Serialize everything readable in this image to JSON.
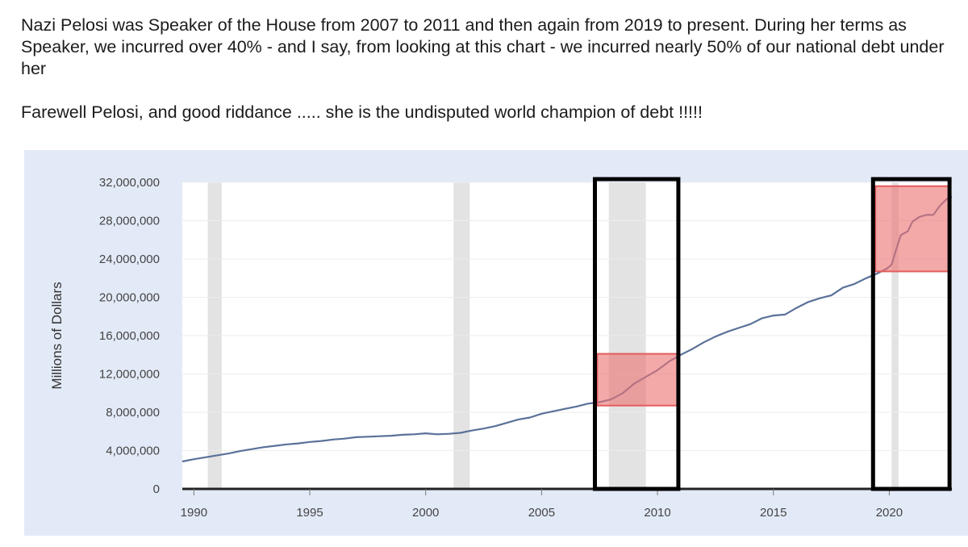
{
  "post": {
    "paragraph1": "Nazi Pelosi was Speaker of the House from 2007 to 2011 and then again from 2019 to present.  During her terms as Speaker, we incurred over 40% - and I say, from looking at this chart - we incurred nearly 50% of our national debt under her",
    "paragraph2": "Farewell Pelosi, and good riddance ..... she is the undisputed world champion of debt !!!!!"
  },
  "chart_data": {
    "type": "line",
    "title": "",
    "xlabel": "",
    "ylabel": "Millions of Dollars",
    "xlim": [
      1989.5,
      2022.7
    ],
    "ylim": [
      0,
      32000000
    ],
    "yticks": [
      0,
      4000000,
      8000000,
      12000000,
      16000000,
      20000000,
      24000000,
      28000000,
      32000000
    ],
    "ytick_labels": [
      "0",
      "4,000,000",
      "8,000,000",
      "12,000,000",
      "16,000,000",
      "20,000,000",
      "24,000,000",
      "28,000,000",
      "32,000,000"
    ],
    "xticks": [
      1990,
      1995,
      2000,
      2005,
      2010,
      2015,
      2020
    ],
    "xtick_labels": [
      "1990",
      "1995",
      "2000",
      "2005",
      "2010",
      "2015",
      "2020"
    ],
    "grid": "horizontal",
    "recession_bands": [
      [
        1990.6,
        1991.2
      ],
      [
        2001.2,
        2001.9
      ],
      [
        2007.9,
        2009.5
      ],
      [
        2020.1,
        2020.4
      ]
    ],
    "series": [
      {
        "color": "#5a7199",
        "x": [
          1989.5,
          1990.0,
          1990.5,
          1991.0,
          1991.5,
          1992.0,
          1992.5,
          1993.0,
          1993.5,
          1994.0,
          1994.5,
          1995.0,
          1995.5,
          1996.0,
          1996.5,
          1997.0,
          1997.5,
          1998.0,
          1998.5,
          1999.0,
          1999.5,
          2000.0,
          2000.5,
          2001.0,
          2001.5,
          2002.0,
          2002.5,
          2003.0,
          2003.5,
          2004.0,
          2004.5,
          2005.0,
          2005.5,
          2006.0,
          2006.5,
          2007.0,
          2007.5,
          2008.0,
          2008.5,
          2009.0,
          2009.5,
          2010.0,
          2010.5,
          2011.0,
          2011.5,
          2012.0,
          2012.5,
          2013.0,
          2013.5,
          2014.0,
          2014.5,
          2015.0,
          2015.5,
          2016.0,
          2016.5,
          2017.0,
          2017.5,
          2018.0,
          2018.5,
          2019.0,
          2019.5,
          2019.9,
          2020.1,
          2020.3,
          2020.5,
          2020.8,
          2021.0,
          2021.3,
          2021.6,
          2021.9,
          2022.2,
          2022.5,
          2022.7
        ],
        "values": [
          2860000,
          3100000,
          3300000,
          3500000,
          3700000,
          3950000,
          4150000,
          4350000,
          4500000,
          4650000,
          4750000,
          4900000,
          5000000,
          5150000,
          5250000,
          5400000,
          5450000,
          5500000,
          5550000,
          5650000,
          5700000,
          5800000,
          5700000,
          5750000,
          5850000,
          6100000,
          6300000,
          6550000,
          6900000,
          7250000,
          7450000,
          7850000,
          8100000,
          8350000,
          8600000,
          8900000,
          9050000,
          9350000,
          10000000,
          11000000,
          11700000,
          12400000,
          13300000,
          14000000,
          14600000,
          15300000,
          15900000,
          16400000,
          16800000,
          17200000,
          17800000,
          18100000,
          18200000,
          18900000,
          19500000,
          19900000,
          20200000,
          21000000,
          21400000,
          22000000,
          22500000,
          23000000,
          23400000,
          25000000,
          26500000,
          26900000,
          27900000,
          28400000,
          28600000,
          28600000,
          29600000,
          30300000,
          30500000
        ]
      }
    ],
    "annotations": {
      "black_boxes": [
        {
          "x_from": 2007.3,
          "x_to": 2010.9,
          "y_from": 0,
          "y_to": 32000000,
          "color": "#000000"
        },
        {
          "x_from": 2019.3,
          "x_to": 2022.6,
          "y_from": 0,
          "y_to": 32000000,
          "color": "#000000"
        }
      ],
      "red_boxes": [
        {
          "x_from": 2007.4,
          "x_to": 2010.9,
          "y_from": 8700000,
          "y_to": 14100000,
          "color": "#ee7474"
        },
        {
          "x_from": 2019.4,
          "x_to": 2022.6,
          "y_from": 22700000,
          "y_to": 31600000,
          "color": "#ee7474"
        }
      ]
    },
    "colors": {
      "panel_bg": "#e3eaf7",
      "plot_bg": "#ffffff",
      "recession": "#e3e3e3",
      "line": "#5a7199"
    }
  }
}
